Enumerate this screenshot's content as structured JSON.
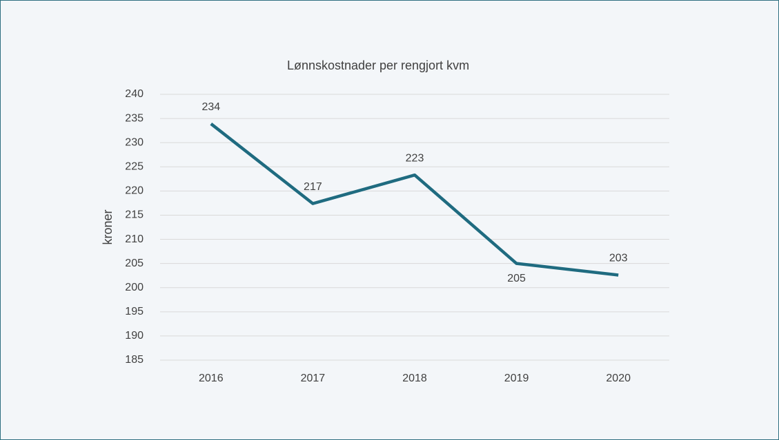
{
  "chart_data": {
    "type": "line",
    "title": "Lønnskostnader per rengjort kvm",
    "y_label": "kroner",
    "categories": [
      "2016",
      "2017",
      "2018",
      "2019",
      "2020"
    ],
    "series": [
      {
        "name": "kroner",
        "color": "#1f6b80",
        "values": [
          233.9,
          217.4,
          223.3,
          205.0,
          202.6
        ],
        "value_labels": [
          "234",
          "217",
          "223",
          "205",
          "203"
        ]
      }
    ],
    "ylim": [
      185,
      240
    ],
    "yticks": [
      185,
      190,
      195,
      200,
      205,
      210,
      215,
      220,
      225,
      230,
      235,
      240
    ],
    "grid": true
  }
}
